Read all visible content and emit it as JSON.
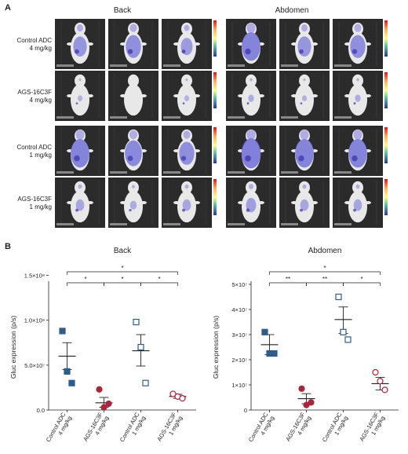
{
  "panel_a": {
    "letter": "A",
    "columns": [
      "Back",
      "Abdomen"
    ],
    "rows": [
      {
        "line1": "Control ADC",
        "line2": "4 mg/kg"
      },
      {
        "line1": "AGS-16C3F",
        "line2": "4 mg/kg"
      },
      {
        "line1": "Control ADC",
        "line2": "1 mg/kg"
      },
      {
        "line1": "AGS-16C3F",
        "line2": "1 mg/kg"
      }
    ],
    "signal_levels": [
      [
        0.6,
        0.7,
        0.5,
        0.9,
        0.6,
        0.7
      ],
      [
        0.1,
        0.05,
        0.1,
        0.15,
        0.1,
        0.15
      ],
      [
        0.9,
        0.8,
        0.7,
        0.95,
        0.9,
        0.9
      ],
      [
        0.3,
        0.2,
        0.3,
        0.4,
        0.3,
        0.3
      ]
    ]
  },
  "panel_b": {
    "letter": "B"
  },
  "chart_data": [
    {
      "type": "scatter",
      "title": "Back",
      "ylabel": "Gluc expression (p/s)",
      "ylim": [
        0,
        140000000
      ],
      "yticks": [
        {
          "value": 0,
          "label": "0.0"
        },
        {
          "value": 50000000,
          "label": "5.0×10⁷"
        },
        {
          "value": 100000000,
          "label": "1.0×10⁸"
        },
        {
          "value": 150000000,
          "label": "1.5×10⁸"
        }
      ],
      "categories": [
        {
          "line1": "Control ADC",
          "line2": "4 mg/kg"
        },
        {
          "line1": "AGS-16C3F",
          "line2": "4 mg/kg"
        },
        {
          "line1": "Control ADC",
          "line2": "1 mg/kg"
        },
        {
          "line1": "AGS-16C3F",
          "line2": "1 mg/kg"
        }
      ],
      "series": [
        {
          "marker": "square-filled",
          "color": "#2f5c8a",
          "values": [
            88000000,
            43000000,
            30000000
          ],
          "mean": 60000000,
          "sem_low": 45000000,
          "sem_high": 75000000
        },
        {
          "marker": "circle-filled",
          "color": "#a8263c",
          "values": [
            23000000,
            3000000,
            7000000
          ],
          "mean": 8000000,
          "sem_low": 3000000,
          "sem_high": 14000000
        },
        {
          "marker": "square-open",
          "color": "#2f5c8a",
          "values": [
            98000000,
            70000000,
            30000000
          ],
          "mean": 66000000,
          "sem_low": 49000000,
          "sem_high": 84000000
        },
        {
          "marker": "circle-open",
          "color": "#a8263c",
          "values": [
            18000000,
            15000000,
            13000000
          ],
          "mean": 15000000,
          "sem_low": 13000000,
          "sem_high": 17500000
        }
      ],
      "significance": [
        {
          "from": 0,
          "to": 1,
          "label": "*",
          "level": 0
        },
        {
          "from": 1,
          "to": 2,
          "label": "*",
          "level": 0
        },
        {
          "from": 2,
          "to": 3,
          "label": "*",
          "level": 0
        },
        {
          "from": 0,
          "to": 3,
          "label": "*",
          "level": 1
        }
      ]
    },
    {
      "type": "scatter",
      "title": "Abdomen",
      "ylabel": "Gluc expression (p/s)",
      "ylim": [
        0,
        50000000
      ],
      "yticks": [
        {
          "value": 0,
          "label": "0"
        },
        {
          "value": 10000000,
          "label": "1×10⁷"
        },
        {
          "value": 20000000,
          "label": "2×10⁷"
        },
        {
          "value": 30000000,
          "label": "3×10⁷"
        },
        {
          "value": 40000000,
          "label": "4×10⁷"
        },
        {
          "value": 50000000,
          "label": "5×10⁷"
        }
      ],
      "categories": [
        {
          "line1": "Control ADC",
          "line2": "4 mg/kg"
        },
        {
          "line1": "AGS-16C3F",
          "line2": "4 mg/kg"
        },
        {
          "line1": "Control ADC",
          "line2": "1 mg/kg"
        },
        {
          "line1": "AGS-16C3F",
          "line2": "1 mg/kg"
        }
      ],
      "series": [
        {
          "marker": "square-filled",
          "color": "#2f5c8a",
          "values": [
            31000000,
            22500000,
            22500000
          ],
          "mean": 26000000,
          "sem_low": 22000000,
          "sem_high": 30000000
        },
        {
          "marker": "circle-filled",
          "color": "#a8263c",
          "values": [
            8500000,
            2000000,
            3000000
          ],
          "mean": 4500000,
          "sem_low": 2500000,
          "sem_high": 6500000
        },
        {
          "marker": "square-open",
          "color": "#2f5c8a",
          "values": [
            45000000,
            31000000,
            28000000
          ],
          "mean": 36000000,
          "sem_low": 30500000,
          "sem_high": 41000000
        },
        {
          "marker": "circle-open",
          "color": "#a8263c",
          "values": [
            15000000,
            11500000,
            8000000
          ],
          "mean": 10500000,
          "sem_low": 8000000,
          "sem_high": 13000000
        }
      ],
      "significance": [
        {
          "from": 0,
          "to": 1,
          "label": "**",
          "level": 0
        },
        {
          "from": 1,
          "to": 2,
          "label": "**",
          "level": 0
        },
        {
          "from": 2,
          "to": 3,
          "label": "*",
          "level": 0
        },
        {
          "from": 0,
          "to": 3,
          "label": "*",
          "level": 1
        }
      ]
    }
  ]
}
